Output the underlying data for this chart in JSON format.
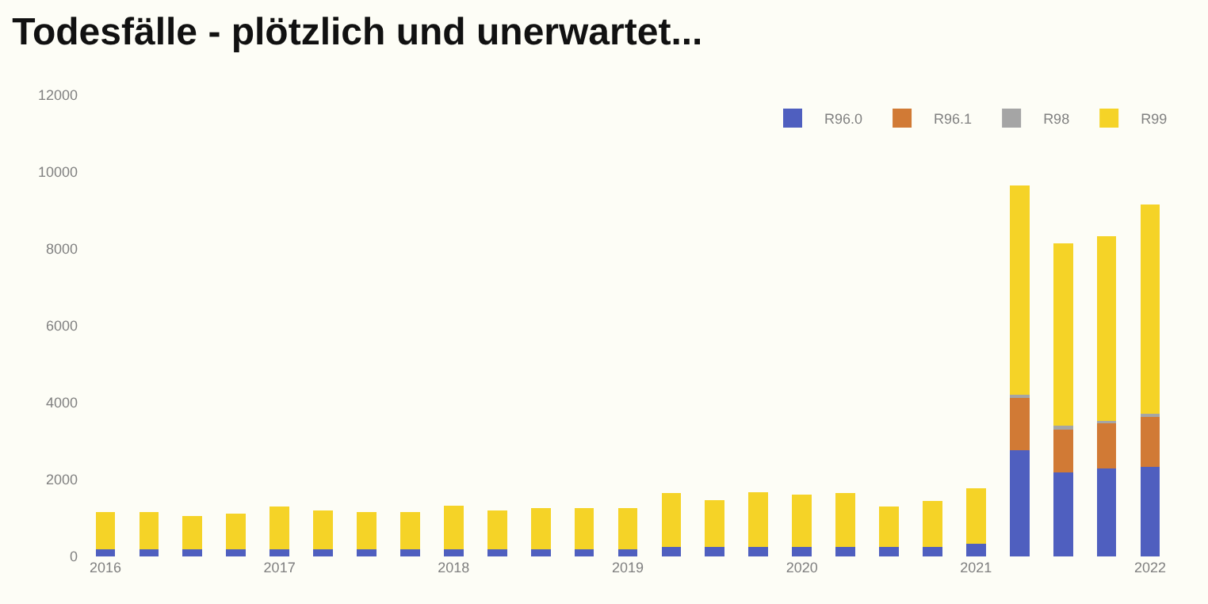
{
  "chart_data": {
    "type": "bar",
    "title": "Todesfälle - plötzlich und unerwartet...",
    "stacked": true,
    "legend": "top right",
    "grid": false,
    "categories": [
      "2016",
      null,
      null,
      null,
      "2017",
      null,
      null,
      null,
      "2018",
      null,
      null,
      null,
      "2019",
      null,
      null,
      null,
      "2020",
      null,
      null,
      null,
      "2021",
      null,
      null,
      null,
      "2022"
    ],
    "ylim": [
      0,
      12000
    ],
    "yticks": [
      0,
      2000,
      4000,
      6000,
      8000,
      10000,
      12000
    ],
    "series": [
      {
        "name": "R96.0",
        "color": "#4f5fbf",
        "values": [
          190,
          190,
          190,
          190,
          190,
          190,
          190,
          190,
          190,
          190,
          190,
          190,
          190,
          240,
          240,
          240,
          240,
          240,
          240,
          240,
          320,
          2760,
          2180,
          2290,
          2340
        ]
      },
      {
        "name": "R96.1",
        "color": "#d17a35",
        "values": [
          null,
          null,
          null,
          null,
          null,
          null,
          null,
          null,
          null,
          null,
          null,
          null,
          null,
          null,
          null,
          null,
          null,
          null,
          null,
          null,
          null,
          1380,
          1160,
          1180,
          1310
        ]
      },
      {
        "name": "R98",
        "color": "#a5a5a5",
        "values": [
          null,
          null,
          null,
          null,
          null,
          null,
          null,
          null,
          null,
          null,
          null,
          null,
          null,
          null,
          null,
          null,
          null,
          null,
          null,
          null,
          null,
          70,
          60,
          60,
          60
        ]
      },
      {
        "name": "R99",
        "color": "#f5d327",
        "values": [
          970,
          960,
          860,
          930,
          1110,
          1000,
          960,
          960,
          1140,
          1000,
          1060,
          1060,
          1060,
          1400,
          1230,
          1430,
          1370,
          1400,
          1060,
          1200,
          1460,
          5440,
          4740,
          4790,
          5440
        ]
      }
    ]
  }
}
